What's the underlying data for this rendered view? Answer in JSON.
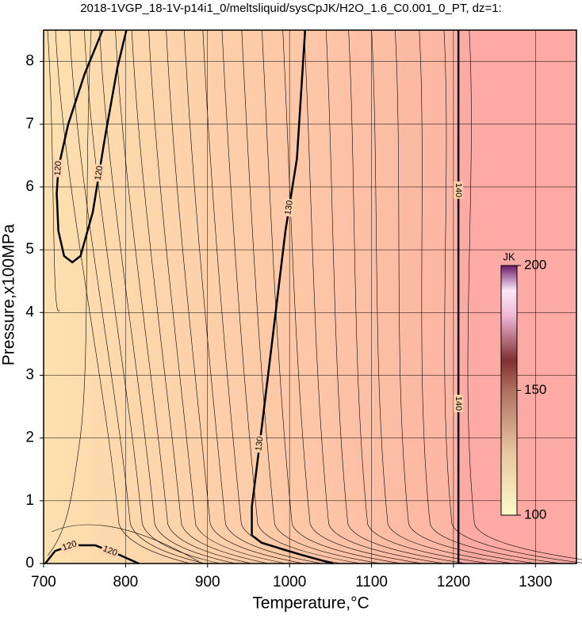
{
  "chart_data": {
    "type": "contour",
    "title": "2018-1VGP_18-1V-p14i1_0/meltsliquid/sysCpJK/H2O_1.6_C0.001_0_PT, dz=1:",
    "xlabel": "Temperature,°C",
    "ylabel": "Pressure,x100MPa",
    "xlim": [
      700,
      1350
    ],
    "ylim": [
      0,
      8.5
    ],
    "xticks": [
      700,
      800,
      900,
      1000,
      1100,
      1200,
      1300
    ],
    "yticks": [
      0,
      1,
      2,
      3,
      4,
      5,
      6,
      7,
      8
    ],
    "grid": true,
    "contours": [
      {
        "level": 120,
        "color": "#000000",
        "x": [
          772,
          750,
          730,
          718,
          716,
          718,
          725,
          735,
          745,
          760,
          775,
          790,
          801
        ],
        "y": [
          8.5,
          7.8,
          7.0,
          6.3,
          5.9,
          5.3,
          4.9,
          4.8,
          4.9,
          5.6,
          6.8,
          7.9,
          8.5
        ]
      },
      {
        "level": 120,
        "color": "#000000",
        "x": [
          702,
          714,
          734,
          763,
          792,
          816
        ],
        "y": [
          0,
          0.2,
          0.29,
          0.29,
          0.14,
          0
        ]
      },
      {
        "level": 130,
        "color": "#000000",
        "x": [
          1019,
          1009,
          995,
          980,
          966,
          954,
          954,
          966,
          1014,
          1053
        ],
        "y": [
          8.5,
          6.45,
          5.3,
          3.67,
          2.16,
          0.9,
          0.45,
          0.33,
          0.14,
          0
        ]
      },
      {
        "level": 140,
        "color": "#000000",
        "x": [
          1206,
          1206
        ],
        "y": [
          8.5,
          0
        ]
      }
    ],
    "colorbar": {
      "label": "JK",
      "lim": [
        100,
        200
      ],
      "ticks": [
        100,
        150,
        200
      ]
    }
  }
}
